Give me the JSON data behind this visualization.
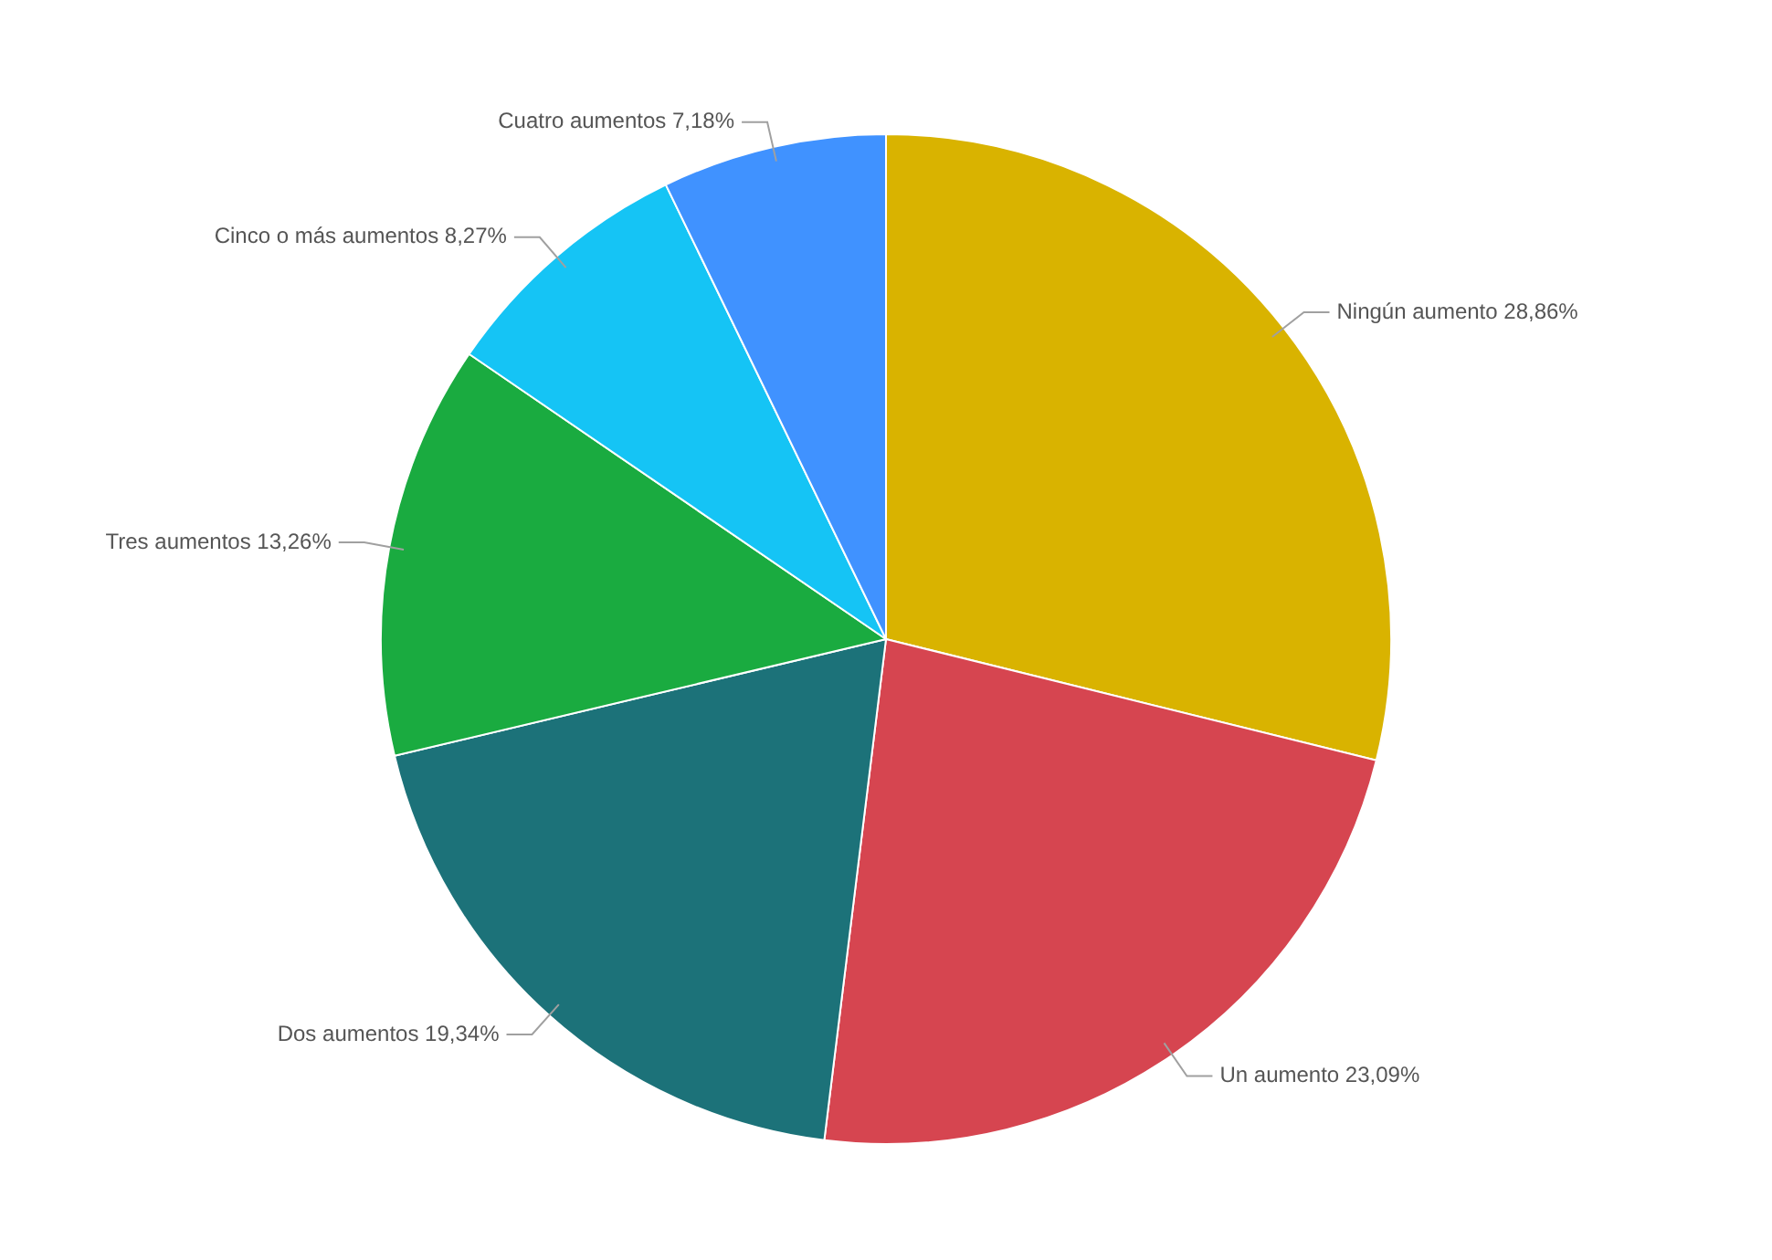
{
  "chart_data": {
    "type": "pie",
    "categories": [
      "Ningún aumento",
      "Un aumento",
      "Dos aumentos",
      "Tres aumentos",
      "Cinco o más aumentos",
      "Cuatro aumentos"
    ],
    "values": [
      28.86,
      23.09,
      19.34,
      13.26,
      8.27,
      7.18
    ],
    "colors": [
      "#d9b300",
      "#d64550",
      "#1c7279",
      "#1aab40",
      "#15c4f5",
      "#4092ff"
    ],
    "value_labels": [
      "28,86%",
      "23,09%",
      "19,34%",
      "13,26%",
      "8,27%",
      "7,18%"
    ],
    "legend": false
  }
}
